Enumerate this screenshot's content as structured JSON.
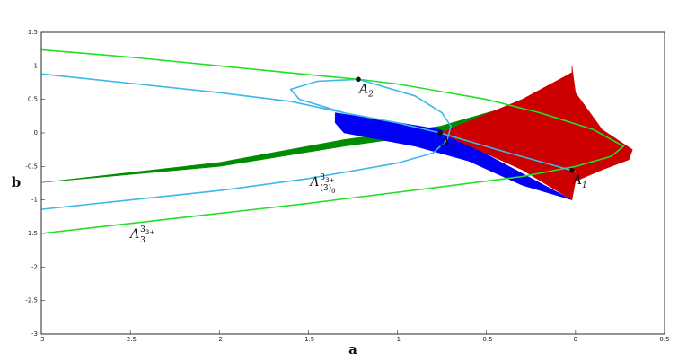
{
  "chart_data": {
    "type": "region-lines",
    "xlabel": "a",
    "ylabel": "b",
    "xlim": [
      -3,
      0.5
    ],
    "ylim": [
      -3,
      1.5
    ],
    "xticks": [
      -3,
      -2.5,
      -2,
      -1.5,
      -1,
      -0.5,
      0,
      0.5
    ],
    "yticks": [
      -3,
      -2.5,
      -2,
      -1.5,
      -1,
      -0.5,
      0,
      0.5,
      1,
      1.5
    ],
    "regions": [
      {
        "color": "#008c00",
        "x": [
          -3,
          -2,
          -1.3,
          -0.76,
          -0.3,
          -0.02,
          -0.3,
          -0.76,
          -1.3,
          -2,
          -3
        ],
        "y": [
          -0.74,
          -0.44,
          -0.1,
          0.1,
          0.45,
          0.9,
          0.3,
          0,
          -0.2,
          -0.5,
          -0.74
        ]
      },
      {
        "color": "#0000f5",
        "x": [
          -1.35,
          -1.1,
          -0.76,
          -0.02,
          -0.3,
          -0.6,
          -0.9,
          -1.3,
          -1.35
        ],
        "y": [
          0.3,
          0.2,
          0.05,
          -1,
          -0.78,
          -0.42,
          -0.2,
          0,
          0.15
        ]
      },
      {
        "color": "#cc0000",
        "x": [
          -0.02,
          0,
          0.15,
          0.32,
          0.3,
          0.15,
          0,
          -0.02,
          -0.3,
          -0.76,
          -0.3,
          -0.02
        ],
        "y": [
          1,
          0.6,
          0.05,
          -0.25,
          -0.4,
          -0.55,
          -0.72,
          -1,
          -0.55,
          0,
          0.5,
          0.9
        ]
      }
    ],
    "series": [
      {
        "color": "#22e022",
        "x": [
          -3,
          -2.5,
          -2,
          -1.5,
          -1.22,
          -1,
          -0.5,
          -0.2,
          0.1,
          0.27,
          0.2,
          0,
          -0.3,
          -0.8,
          -1.5,
          -2,
          -2.5,
          -3
        ],
        "y": [
          1.24,
          1.13,
          1.0,
          0.87,
          0.8,
          0.73,
          0.5,
          0.3,
          0.05,
          -0.2,
          -0.35,
          -0.5,
          -0.65,
          -0.82,
          -1.05,
          -1.2,
          -1.35,
          -1.5
        ]
      },
      {
        "color": "#3bb8e8",
        "x": [
          -3,
          -2.5,
          -2,
          -1.5,
          -1,
          -0.8,
          -0.72,
          -0.7,
          -0.75,
          -0.9,
          -1.22,
          -1.45,
          -1.6,
          -1.55,
          -1.3,
          -1,
          -0.76,
          -0.4,
          -0.02,
          0,
          null,
          -3,
          -2.5,
          -2,
          -1.6,
          -1.3
        ],
        "y": [
          -1.14,
          -1.0,
          -0.86,
          -0.68,
          -0.45,
          -0.3,
          -0.1,
          0.1,
          0.3,
          0.55,
          0.8,
          0.77,
          0.65,
          0.5,
          0.3,
          0.15,
          0,
          -0.28,
          -0.56,
          -0.58,
          null,
          0.88,
          0.74,
          0.6,
          0.47,
          0.3
        ]
      }
    ],
    "points": [
      {
        "label": "A",
        "sub": "2",
        "x": -1.22,
        "y": 0.8
      },
      {
        "label": "A",
        "sub": "3",
        "x": -0.76,
        "y": 0
      },
      {
        "label": "A",
        "sub": "1",
        "x": -0.02,
        "y": -0.56
      }
    ],
    "annotations": [
      {
        "base": "Λ",
        "sup": "3",
        "sup_sub": "3+",
        "sub": "(3)",
        "sub_sub": "0"
      },
      {
        "base": "Λ",
        "sup": "3",
        "sup_sub": "3+",
        "sub": "3"
      }
    ]
  }
}
